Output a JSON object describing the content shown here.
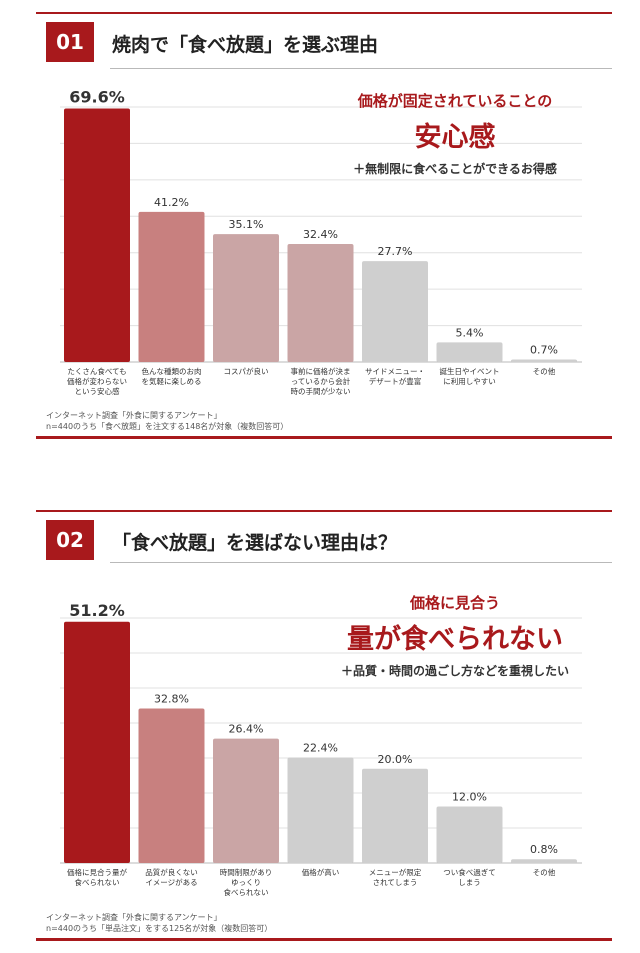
{
  "colors": {
    "accent": "#a8191c",
    "bar_mid": "#c8807f",
    "bar_light": "#caa5a5",
    "bar_grey": "#cfcfcf"
  },
  "panels": [
    {
      "number": "01",
      "title": "焼肉で「食べ放題」を選ぶ理由",
      "callout": {
        "line1": "価格が固定されていることの",
        "line2": "安心感",
        "line3": "＋無制限に食べることができるお得感"
      },
      "footnote": [
        "インターネット調査「外食に関するアンケート」",
        "n=440のうち「食べ放題」を注文する148名が対象（複数回答可）"
      ]
    },
    {
      "number": "02",
      "title": "「食べ放題」を選ばない理由は？",
      "callout": {
        "line1": "価格に見合う",
        "line2": "量が食べられない",
        "line3": "＋品質・時間の過ごし方などを重視したい"
      },
      "footnote": [
        "インターネット調査「外食に関するアンケート」",
        "n=440のうち「単品注文」をする125名が対象（複数回答可）"
      ]
    }
  ],
  "chart_data": [
    {
      "type": "bar",
      "title": "焼肉で「食べ放題」を選ぶ理由",
      "categories": [
        [
          "たくさん食べても",
          "価格が変わらない",
          "という安心感"
        ],
        [
          "色んな種類のお肉",
          "を気軽に楽しめる"
        ],
        [
          "コスパが良い"
        ],
        [
          "事前に価格が決ま",
          "っているから会計",
          "時の手間が少ない"
        ],
        [
          "サイドメニュー・",
          "デザートが豊富"
        ],
        [
          "誕生日やイベント",
          "に利用しやすい"
        ],
        [
          "その他"
        ]
      ],
      "values": [
        69.6,
        41.2,
        35.1,
        32.4,
        27.7,
        5.4,
        0.7
      ],
      "value_labels": [
        "69.6%",
        "41.2%",
        "35.1%",
        "32.4%",
        "27.7%",
        "5.4%",
        "0.7%"
      ],
      "bar_colors": [
        "#a8191c",
        "#c8807f",
        "#caa5a5",
        "#caa5a5",
        "#cfcfcf",
        "#cfcfcf",
        "#cfcfcf"
      ],
      "ylim": [
        0,
        70
      ],
      "grid": true
    },
    {
      "type": "bar",
      "title": "「食べ放題」を選ばない理由は？",
      "categories": [
        [
          "価格に見合う量が",
          "食べられない"
        ],
        [
          "品質が良くない",
          "イメージがある"
        ],
        [
          "時間制限があり",
          "ゆっくり",
          "食べられない"
        ],
        [
          "価格が高い"
        ],
        [
          "メニューが限定",
          "されてしまう"
        ],
        [
          "つい食べ過ぎて",
          "しまう"
        ],
        [
          "その他"
        ]
      ],
      "values": [
        51.2,
        32.8,
        26.4,
        22.4,
        20.0,
        12.0,
        0.8
      ],
      "value_labels": [
        "51.2%",
        "32.8%",
        "26.4%",
        "22.4%",
        "20.0%",
        "12.0%",
        "0.8%"
      ],
      "bar_colors": [
        "#a8191c",
        "#c8807f",
        "#caa5a5",
        "#cfcfcf",
        "#cfcfcf",
        "#cfcfcf",
        "#cfcfcf"
      ],
      "ylim": [
        0,
        52
      ],
      "grid": true
    }
  ]
}
